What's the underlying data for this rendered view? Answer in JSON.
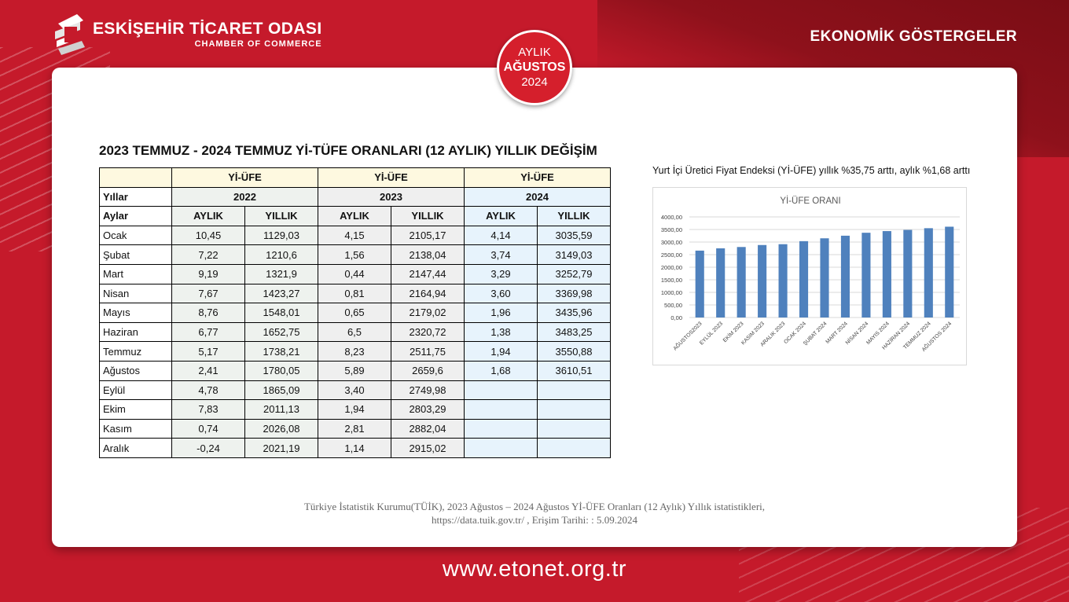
{
  "header": {
    "org_name": "ESKİŞEHİR TİCARET ODASI",
    "org_sub": "CHAMBER OF COMMERCE",
    "section_title": "EKONOMİK GÖSTERGELER"
  },
  "badge": {
    "line1": "AYLIK",
    "line2": "AĞUSTOS",
    "line3": "2024"
  },
  "page_title": "2023 TEMMUZ - 2024 TEMMUZ Yİ-TÜFE ORANLARI (12 AYLIK) YILLIK DEĞİŞİM",
  "table": {
    "group_label": "Yİ-ÜFE",
    "years_label": "Yıllar",
    "months_label": "Aylar",
    "years": [
      "2022",
      "2023",
      "2024"
    ],
    "sub_headers": [
      "AYLIK",
      "YILLIK"
    ],
    "rows": [
      {
        "month": "Ocak",
        "v": [
          "10,45",
          "1129,03",
          "4,15",
          "2105,17",
          "4,14",
          "3035,59"
        ]
      },
      {
        "month": "Şubat",
        "v": [
          "7,22",
          "1210,6",
          "1,56",
          "2138,04",
          "3,74",
          "3149,03"
        ]
      },
      {
        "month": "Mart",
        "v": [
          "9,19",
          "1321,9",
          "0,44",
          "2147,44",
          "3,29",
          "3252,79"
        ]
      },
      {
        "month": "Nisan",
        "v": [
          "7,67",
          "1423,27",
          "0,81",
          "2164,94",
          "3,60",
          "3369,98"
        ]
      },
      {
        "month": "Mayıs",
        "v": [
          "8,76",
          "1548,01",
          "0,65",
          "2179,02",
          "1,96",
          "3435,96"
        ]
      },
      {
        "month": "Haziran",
        "v": [
          "6,77",
          "1652,75",
          "6,5",
          "2320,72",
          "1,38",
          "3483,25"
        ]
      },
      {
        "month": "Temmuz",
        "v": [
          "5,17",
          "1738,21",
          "8,23",
          "2511,75",
          "1,94",
          "3550,88"
        ]
      },
      {
        "month": "Ağustos",
        "v": [
          "2,41",
          "1780,05",
          "5,89",
          "2659,6",
          "1,68",
          "3610,51"
        ]
      },
      {
        "month": "Eylül",
        "v": [
          "4,78",
          "1865,09",
          "3,40",
          "2749,98",
          "",
          ""
        ]
      },
      {
        "month": "Ekim",
        "v": [
          "7,83",
          "2011,13",
          "1,94",
          "2803,29",
          "",
          ""
        ]
      },
      {
        "month": "Kasım",
        "v": [
          "0,74",
          "2026,08",
          "2,81",
          "2882,04",
          "",
          ""
        ]
      },
      {
        "month": "Aralık",
        "v": [
          "-0,24",
          "2021,19",
          "1,14",
          "2915,02",
          "",
          ""
        ]
      }
    ]
  },
  "chart_caption": "Yurt İçi Üretici Fiyat Endeksi (Yİ-ÜFE) yıllık %35,75 arttı, aylık %1,68 arttı",
  "chart_data": {
    "type": "bar",
    "title": "Yİ-ÜFE ORANI",
    "categories": [
      "AĞUSTOS2023",
      "EYLÜL 2023",
      "EKİM 2023",
      "KASIM 2023",
      "ARALIK 2023",
      "OCAK 2024",
      "ŞUBAT 2024",
      "MART 2024",
      "NİSAN 2024",
      "MAYIS 2024",
      "HAZİRAN 2024",
      "TEMMUZ 2024",
      "AĞUSTOS 2024"
    ],
    "values": [
      2659.6,
      2749.98,
      2803.29,
      2882.04,
      2915.02,
      3035.59,
      3149.03,
      3252.79,
      3369.98,
      3435.96,
      3483.25,
      3550.88,
      3610.51
    ],
    "ylim": [
      0,
      4000
    ],
    "yticks": [
      "0,00",
      "500,00",
      "1000,00",
      "1500,00",
      "2000,00",
      "2500,00",
      "3000,00",
      "3500,00",
      "4000,00"
    ],
    "grid": true,
    "bar_color": "#4f81bd"
  },
  "source": {
    "line1": "Türkiye İstatistik Kurumu(TÜİK), 2023 Ağustos – 2024 Ağustos Yİ-ÜFE Oranları (12 Aylık) Yıllık istatistikleri,",
    "line2": "https://data.tuik.gov.tr/ , Erişim Tarihi: : 5.09.2024"
  },
  "footer_url": "www.etonet.org.tr",
  "colors": {
    "brand_red": "#c51a2b",
    "dark_red": "#7a0d15"
  }
}
